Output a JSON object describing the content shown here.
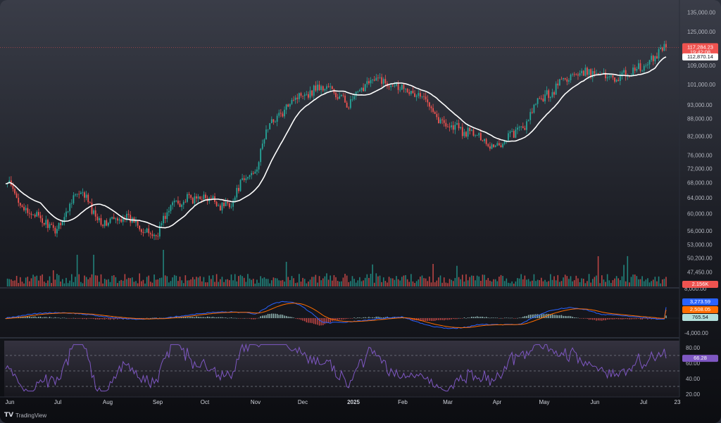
{
  "brand": {
    "name": "TradingView",
    "logo_icon": "tradingview-logo-icon"
  },
  "colors": {
    "up": "#26a69a",
    "down": "#ef5350",
    "ma": "#ffffff",
    "macd": "#2962ff",
    "signal": "#ff6d00",
    "rsi": "#7e57c2",
    "background_top": "#3a3d48",
    "background_bottom": "#0c0d11"
  },
  "chart_data": {
    "type": "candlestick",
    "panels": [
      {
        "name": "price",
        "scale": "log",
        "ylim": [
          45000,
          138000
        ],
        "y_ticks": [
          "135,000.00",
          "125,000.00",
          "109,000.00",
          "101,000.00",
          "93,000.00",
          "88,000.00",
          "82,000.00",
          "76,000.00",
          "72,000.00",
          "68,000.00",
          "64,000.00",
          "60,000.00",
          "56,000.00",
          "53,000.00",
          "50,200.00",
          "47,450.00"
        ],
        "current_price": 117284.23,
        "current_price_label": "117,284.23",
        "countdown_label": "19:42:08",
        "ma_value": 112870.14,
        "ma_label": "112,870.14",
        "volume_label": "2.156K",
        "approx_closes": [
          [
            "Jun",
            67500
          ],
          [
            "Jul",
            60000
          ],
          [
            "Jul",
            56500
          ],
          [
            "Aug",
            65000
          ],
          [
            "Aug",
            58000
          ],
          [
            "Sep",
            59000
          ],
          [
            "Sep",
            55000
          ],
          [
            "Sep",
            63000
          ],
          [
            "Oct",
            64000
          ],
          [
            "Oct",
            62000
          ],
          [
            "Nov",
            70000
          ],
          [
            "Nov",
            88000
          ],
          [
            "Dec",
            97000
          ],
          [
            "Dec",
            100000
          ],
          [
            "2025",
            94000
          ],
          [
            "2025",
            103000
          ],
          [
            "Feb",
            101000
          ],
          [
            "Feb",
            96000
          ],
          [
            "Mar",
            86000
          ],
          [
            "Mar",
            83000
          ],
          [
            "Apr",
            79000
          ],
          [
            "Apr",
            84000
          ],
          [
            "May",
            96000
          ],
          [
            "May",
            104000
          ],
          [
            "Jun",
            106000
          ],
          [
            "Jun",
            104000
          ],
          [
            "Jul",
            108000
          ],
          [
            "Jul",
            117284.23
          ]
        ]
      },
      {
        "name": "macd",
        "y_ticks": [
          "8,000.00",
          "-4,000.00"
        ],
        "macd_label": "3,273.59",
        "signal_label": "2,508.05",
        "histogram_label": "765.54"
      },
      {
        "name": "rsi",
        "ylim": [
          20,
          90
        ],
        "y_ticks": [
          "80.00",
          "60.00",
          "40.00",
          "20.00"
        ],
        "levels": [
          70,
          50,
          30
        ],
        "rsi_label": "66.28",
        "rsi_value": 66.28
      }
    ],
    "x_labels": [
      "Jun",
      "Jul",
      "Aug",
      "Sep",
      "Oct",
      "Nov",
      "Dec",
      "2025",
      "Feb",
      "Mar",
      "Apr",
      "May",
      "Jun",
      "Jul",
      "23"
    ]
  }
}
